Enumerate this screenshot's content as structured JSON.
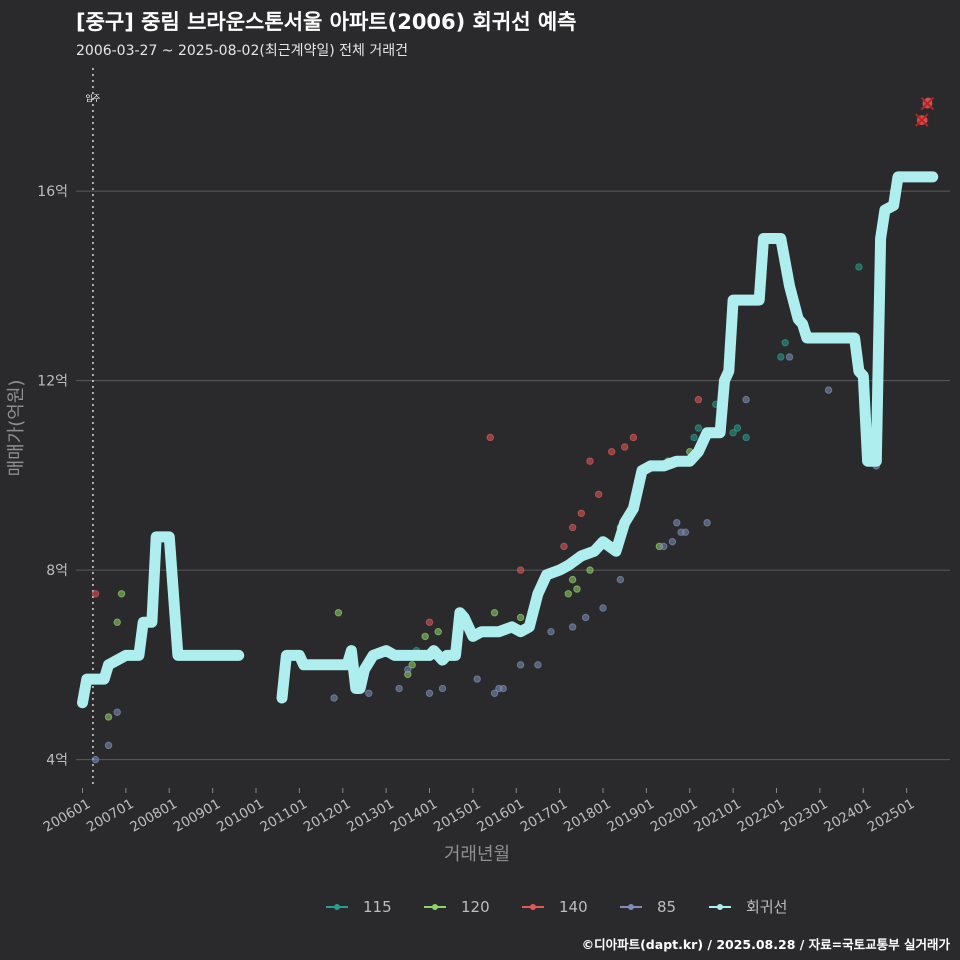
{
  "header": {
    "title": "[중구] 중림 브라운스톤서울 아파트(2006) 회귀선 예측",
    "subtitle": "2006-03-27 ~ 2025-08-02(최근계약일) 전체 거래건"
  },
  "caption": "©디아파트(dapt.kr) / 2025.08.28 / 자료=국토교통부 실거래가",
  "chart_data": {
    "type": "line+scatter",
    "xlabel": "거래년월",
    "ylabel": "매매가(억원)",
    "x_range": [
      2006.0,
      2026.0
    ],
    "ylim": [
      3.4,
      18.6
    ],
    "y_ticks": [
      4,
      8,
      12,
      16
    ],
    "y_tick_labels": [
      "4억",
      "8억",
      "12억",
      "16억"
    ],
    "x_ticks": [
      2006,
      2007,
      2008,
      2009,
      2010,
      2011,
      2012,
      2013,
      2014,
      2015,
      2016,
      2017,
      2018,
      2019,
      2020,
      2021,
      2022,
      2023,
      2024,
      2025
    ],
    "x_tick_labels": [
      "200601",
      "200701",
      "200801",
      "200901",
      "201001",
      "201101",
      "201201",
      "201301",
      "201401",
      "201501",
      "201601",
      "201701",
      "201801",
      "201901",
      "202001",
      "202101",
      "202201",
      "202301",
      "202401",
      "202501"
    ],
    "vline": {
      "x": 2006.24,
      "label": "입주"
    },
    "colors": {
      "115": "#2a9d8f",
      "120": "#8fd16a",
      "140": "#e05a5a",
      "85": "#7b8fb8",
      "회귀선": "#aeeeee"
    },
    "legend": [
      "115",
      "120",
      "140",
      "85",
      "회귀선"
    ],
    "legend_position": "bottom",
    "regression_segments": [
      [
        [
          2006.0,
          5.2
        ],
        [
          2006.1,
          5.7
        ],
        [
          2006.5,
          5.7
        ],
        [
          2006.6,
          6.0
        ],
        [
          2006.8,
          6.1
        ],
        [
          2007.0,
          6.2
        ],
        [
          2007.3,
          6.2
        ],
        [
          2007.4,
          6.9
        ],
        [
          2007.6,
          6.9
        ],
        [
          2007.7,
          8.7
        ],
        [
          2008.0,
          8.7
        ],
        [
          2008.2,
          6.2
        ],
        [
          2009.6,
          6.2
        ]
      ],
      [
        [
          2010.6,
          5.3
        ],
        [
          2010.7,
          6.2
        ],
        [
          2011.0,
          6.2
        ],
        [
          2011.1,
          6.0
        ],
        [
          2012.1,
          6.0
        ],
        [
          2012.2,
          6.3
        ],
        [
          2012.3,
          5.5
        ],
        [
          2012.4,
          5.5
        ],
        [
          2012.5,
          5.9
        ],
        [
          2012.7,
          6.2
        ],
        [
          2013.0,
          6.3
        ],
        [
          2013.2,
          6.2
        ],
        [
          2014.0,
          6.2
        ],
        [
          2014.1,
          6.3
        ],
        [
          2014.3,
          6.1
        ],
        [
          2014.4,
          6.2
        ],
        [
          2014.6,
          6.2
        ],
        [
          2014.7,
          7.1
        ],
        [
          2014.8,
          7.0
        ],
        [
          2015.0,
          6.6
        ],
        [
          2015.2,
          6.7
        ],
        [
          2015.6,
          6.7
        ],
        [
          2015.9,
          6.8
        ],
        [
          2016.1,
          6.7
        ],
        [
          2016.3,
          6.8
        ],
        [
          2016.5,
          7.5
        ],
        [
          2016.7,
          7.9
        ],
        [
          2017.0,
          8.0
        ],
        [
          2017.2,
          8.1
        ],
        [
          2017.5,
          8.3
        ],
        [
          2017.8,
          8.4
        ],
        [
          2018.0,
          8.6
        ],
        [
          2018.3,
          8.4
        ],
        [
          2018.5,
          9.0
        ],
        [
          2018.7,
          9.3
        ],
        [
          2018.9,
          10.1
        ],
        [
          2019.1,
          10.2
        ],
        [
          2019.4,
          10.2
        ],
        [
          2019.7,
          10.3
        ],
        [
          2020.0,
          10.3
        ],
        [
          2020.2,
          10.5
        ],
        [
          2020.4,
          10.9
        ],
        [
          2020.7,
          10.9
        ],
        [
          2020.8,
          12.0
        ],
        [
          2020.9,
          12.2
        ],
        [
          2021.0,
          13.7
        ],
        [
          2021.6,
          13.7
        ],
        [
          2021.7,
          15.0
        ],
        [
          2022.1,
          15.0
        ],
        [
          2022.3,
          14.0
        ],
        [
          2022.5,
          13.3
        ],
        [
          2022.6,
          13.2
        ],
        [
          2022.7,
          12.9
        ],
        [
          2023.0,
          12.9
        ],
        [
          2023.8,
          12.9
        ],
        [
          2023.9,
          12.2
        ],
        [
          2024.0,
          12.1
        ],
        [
          2024.1,
          10.3
        ],
        [
          2024.3,
          10.3
        ],
        [
          2024.4,
          15.0
        ],
        [
          2024.5,
          15.6
        ],
        [
          2024.7,
          15.7
        ],
        [
          2024.8,
          16.3
        ],
        [
          2025.6,
          16.3
        ]
      ]
    ],
    "series": [
      {
        "name": "115",
        "points": [
          [
            2020.1,
            10.8
          ],
          [
            2020.2,
            11.0
          ],
          [
            2020.6,
            11.5
          ],
          [
            2020.7,
            11.3
          ],
          [
            2021.0,
            10.9
          ],
          [
            2021.1,
            11.0
          ],
          [
            2021.3,
            10.8
          ],
          [
            2022.1,
            12.5
          ],
          [
            2022.2,
            12.8
          ],
          [
            2023.9,
            14.4
          ],
          [
            2013.5,
            6.2
          ],
          [
            2013.7,
            6.3
          ],
          [
            2016.8,
            7.9
          ]
        ]
      },
      {
        "name": "120",
        "points": [
          [
            2006.6,
            4.9
          ],
          [
            2006.8,
            6.9
          ],
          [
            2006.9,
            7.5
          ],
          [
            2007.8,
            8.7
          ],
          [
            2011.9,
            7.1
          ],
          [
            2013.5,
            5.8
          ],
          [
            2013.6,
            6.0
          ],
          [
            2013.9,
            6.6
          ],
          [
            2014.2,
            6.7
          ],
          [
            2015.5,
            7.1
          ],
          [
            2016.1,
            7.0
          ],
          [
            2017.2,
            7.5
          ],
          [
            2017.3,
            7.8
          ],
          [
            2017.4,
            7.6
          ],
          [
            2018.4,
            8.9
          ],
          [
            2019.3,
            8.5
          ],
          [
            2019.5,
            10.3
          ],
          [
            2020.0,
            10.5
          ],
          [
            2024.7,
            16.0
          ],
          [
            2017.7,
            8.0
          ]
        ]
      },
      {
        "name": "140",
        "points": [
          [
            2006.3,
            7.5
          ],
          [
            2014.0,
            6.9
          ],
          [
            2015.4,
            10.8
          ],
          [
            2016.1,
            8.0
          ],
          [
            2016.8,
            7.9
          ],
          [
            2017.1,
            8.5
          ],
          [
            2017.3,
            8.9
          ],
          [
            2017.5,
            9.2
          ],
          [
            2017.7,
            10.3
          ],
          [
            2017.9,
            9.6
          ],
          [
            2018.2,
            10.5
          ],
          [
            2018.5,
            10.6
          ],
          [
            2018.7,
            10.8
          ],
          [
            2020.2,
            11.6
          ],
          [
            2025.4,
            17.5
          ],
          [
            2025.5,
            17.9
          ]
        ]
      },
      {
        "name": "85",
        "points": [
          [
            2006.3,
            4.0
          ],
          [
            2006.6,
            4.3
          ],
          [
            2006.8,
            5.0
          ],
          [
            2011.8,
            5.3
          ],
          [
            2012.6,
            5.4
          ],
          [
            2013.3,
            5.5
          ],
          [
            2013.5,
            5.9
          ],
          [
            2013.8,
            6.2
          ],
          [
            2014.0,
            5.4
          ],
          [
            2014.3,
            5.5
          ],
          [
            2015.1,
            5.7
          ],
          [
            2015.5,
            5.4
          ],
          [
            2015.6,
            5.5
          ],
          [
            2015.7,
            5.5
          ],
          [
            2016.1,
            6.0
          ],
          [
            2016.5,
            6.0
          ],
          [
            2016.8,
            6.7
          ],
          [
            2017.3,
            6.8
          ],
          [
            2017.6,
            7.0
          ],
          [
            2018.0,
            7.2
          ],
          [
            2018.4,
            7.8
          ],
          [
            2019.4,
            8.5
          ],
          [
            2019.6,
            8.6
          ],
          [
            2019.7,
            9.0
          ],
          [
            2020.4,
            9.0
          ],
          [
            2021.3,
            11.6
          ],
          [
            2022.3,
            12.5
          ],
          [
            2023.2,
            11.8
          ],
          [
            2024.3,
            10.2
          ],
          [
            2019.8,
            8.8
          ],
          [
            2019.9,
            8.8
          ]
        ]
      }
    ],
    "crossed_points": [
      [
        2025.35,
        17.5
      ],
      [
        2025.48,
        17.85
      ]
    ]
  }
}
